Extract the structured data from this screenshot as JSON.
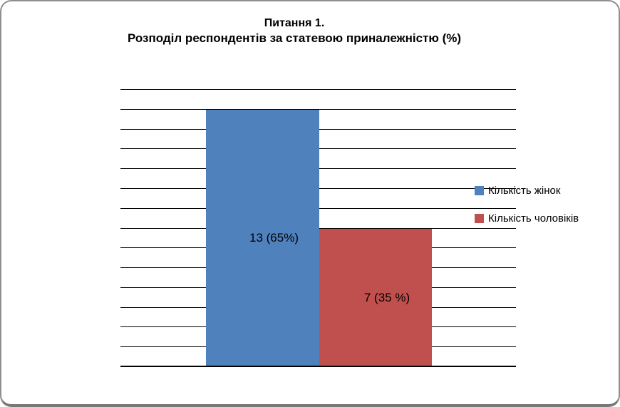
{
  "chart_data": {
    "type": "bar",
    "title_line1": "Питання 1.",
    "title_line2": "Розподіл респондентів за статевою приналежністю (%)",
    "categories": [
      ""
    ],
    "series": [
      {
        "name": "Кількість жінок",
        "values": [
          13
        ],
        "data_label": "13 (65%)",
        "color": "#4F81BD"
      },
      {
        "name": "Кількість чоловіків",
        "values": [
          7
        ],
        "data_label": "7 (35 %)",
        "color": "#C0504D"
      }
    ],
    "xlabel": "",
    "ylabel": "",
    "ylim": [
      0,
      14
    ],
    "gridline_interval": 1,
    "grid": "on",
    "y_tick_labels_visible": false,
    "x_tick_labels_visible": false,
    "legend_position": "right",
    "data_label_position": "center",
    "gridline_color": "#000000"
  },
  "colors": {
    "background": "#ffffff",
    "frame_border": "#8f8f8f",
    "frame_border_bottom": "#787878",
    "text": "#000000"
  }
}
